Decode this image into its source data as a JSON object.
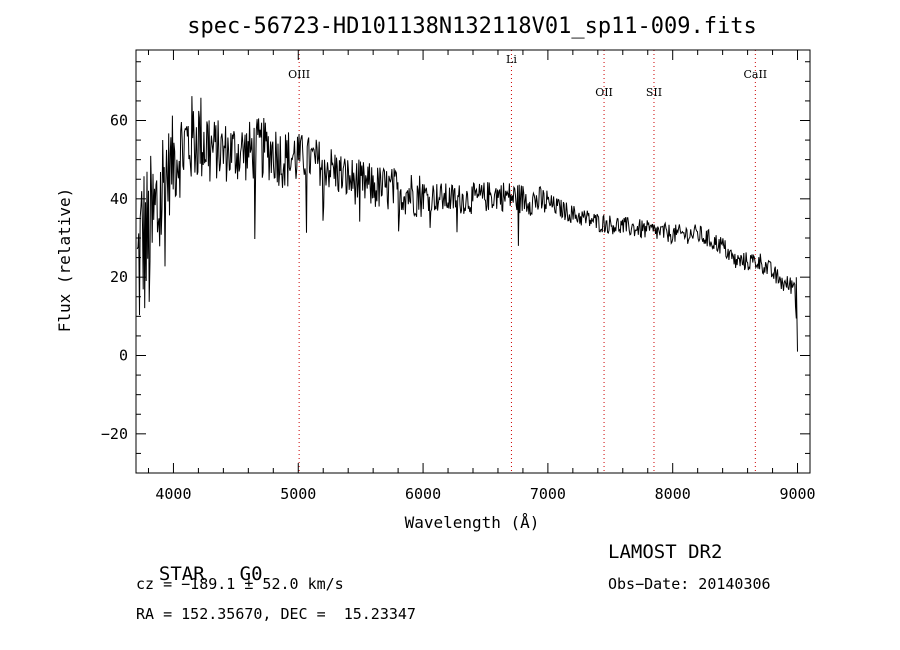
{
  "title": "spec-56723-HD101138N132118V01_sp11-009.fits",
  "chart_data": {
    "type": "line",
    "xlabel": "Wavelength (Å)",
    "ylabel": "Flux (relative)",
    "xlim": [
      3700,
      9100
    ],
    "ylim": [
      -30,
      78
    ],
    "xticks": [
      4000,
      5000,
      6000,
      7000,
      8000,
      9000
    ],
    "yticks": [
      -20,
      0,
      20,
      40,
      60
    ],
    "xminor_step": 200,
    "yminor_step": 5,
    "series": [
      {
        "x": [
          3700,
          3750,
          3800,
          3850,
          3900,
          3950,
          4000,
          4050,
          4100,
          4150,
          4200,
          4250,
          4300,
          4400,
          4500,
          4600,
          4700,
          4800,
          4900,
          5000,
          5200,
          5400,
          5600,
          5800,
          6000,
          6200,
          6400,
          6600,
          6800,
          7000,
          7200,
          7400,
          7600,
          7800,
          8000,
          8200,
          8400,
          8500,
          8600,
          8700,
          8800,
          8900,
          8980,
          9000
        ],
        "y": [
          18,
          30,
          28,
          34,
          40,
          46,
          50,
          52,
          54,
          55,
          56,
          55,
          53,
          52,
          52,
          52,
          53,
          52,
          50,
          51,
          49,
          45,
          43,
          42,
          41,
          40,
          40,
          41,
          40,
          39,
          36,
          34,
          33,
          32,
          31,
          31,
          28,
          24,
          24,
          24,
          21,
          18,
          18,
          1
        ],
        "noise": [
          [
            3700,
            3950,
            22
          ],
          [
            3950,
            4300,
            12
          ],
          [
            4300,
            5000,
            8
          ],
          [
            5000,
            6000,
            6
          ],
          [
            6000,
            7000,
            4
          ],
          [
            7000,
            9000,
            2.5
          ]
        ],
        "color": "#000000"
      }
    ],
    "spectral_lines": [
      {
        "label": "OIII",
        "x": 5007,
        "label_row": "low"
      },
      {
        "label": "Li",
        "x": 6708,
        "label_row": "high"
      },
      {
        "label": "OII",
        "x": 7450,
        "label_row": "lower"
      },
      {
        "label": "SII",
        "x": 7850,
        "label_row": "lower"
      },
      {
        "label": "CaII",
        "x": 8662,
        "label_row": "low"
      }
    ],
    "line_color": "#cc0000"
  },
  "info": {
    "class_label": "STAR",
    "subclass": "G0",
    "survey": "LAMOST DR2",
    "cz": "cz = −189.1 ± 52.0 km/s",
    "obs_date": "Obs−Date: 20140306",
    "coords": "RA = 152.35670, DEC =  15.23347"
  }
}
